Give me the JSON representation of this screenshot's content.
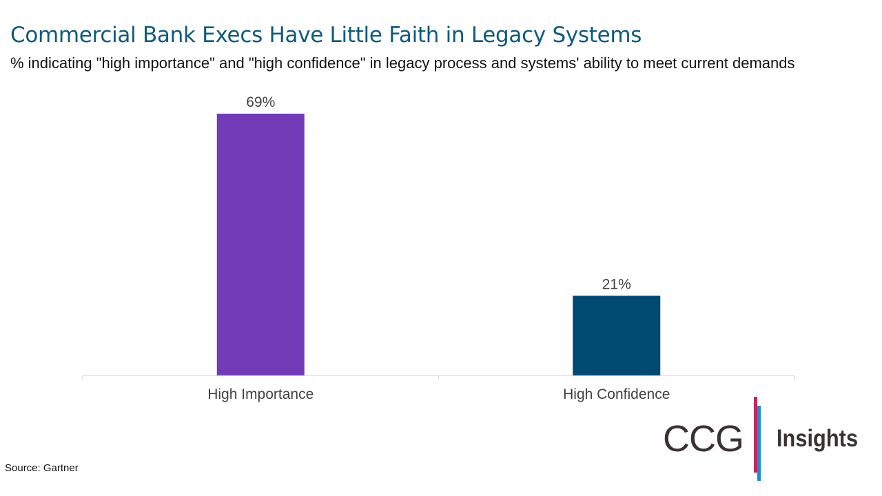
{
  "header": {
    "title": "Commercial Bank Execs Have Little Faith in Legacy Systems",
    "subtitle": "% indicating \"high importance\" and \"high confidence\" in legacy process and systems' ability to meet current demands"
  },
  "chart_data": {
    "type": "bar",
    "title": "Commercial Bank Execs Have Little Faith in Legacy Systems",
    "subtitle": "% indicating \"high importance\" and \"high confidence\" in legacy process and systems' ability to meet current demands",
    "categories": [
      "High Importance",
      "High Confidence"
    ],
    "values": [
      69,
      21
    ],
    "data_labels": [
      "69%",
      "21%"
    ],
    "colors": [
      "#733bb8",
      "#004a72"
    ],
    "xlabel": "",
    "ylabel": "",
    "ylim": [
      0,
      69
    ],
    "grid": false,
    "legend": "none"
  },
  "footer": {
    "source": "Source: Gartner"
  },
  "logo": {
    "brand": "CCG",
    "product": "Insights",
    "colors": {
      "text": "#3a3132",
      "bar_red": "#c8245e",
      "bar_blue": "#1a8fd0"
    }
  }
}
